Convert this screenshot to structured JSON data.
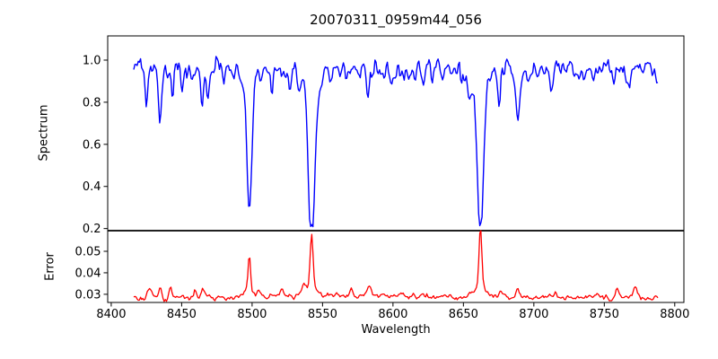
{
  "figure": {
    "title": "20070311_0959m44_056",
    "background_color": "#ffffff",
    "axis_color": "#000000"
  },
  "chart_data": {
    "type": "line",
    "title": "20070311_0959m44_056",
    "xlabel": "Wavelength",
    "grid": false,
    "legend": null,
    "xlim": [
      8397.5,
      8806.5
    ],
    "x_ticks": [
      "8400",
      "8450",
      "8500",
      "8550",
      "8600",
      "8650",
      "8700",
      "8750",
      "8800"
    ],
    "x_tick_values": [
      8400,
      8450,
      8500,
      8550,
      8600,
      8650,
      8700,
      8750,
      8800
    ],
    "x_data_range": [
      8416,
      8788
    ],
    "x_step": 0.8,
    "panels": [
      {
        "name": "spectrum",
        "ylabel": "Spectrum",
        "color": "#0000ff",
        "ylim": [
          0.19,
          1.115
        ],
        "y_ticks": [
          "1.0",
          "0.8",
          "0.6",
          "0.4",
          "0.2"
        ],
        "y_tick_values": [
          1.0,
          0.8,
          0.6,
          0.4,
          0.2
        ],
        "continuum": 0.955,
        "noise_amp": 0.07,
        "noise_fine_amp": 0.012,
        "noise_seed": 20070311,
        "absorption_lines": [
          {
            "center": 8424.8,
            "depth": 0.17,
            "sigma": 0.9
          },
          {
            "center": 8434.5,
            "depth": 0.25,
            "sigma": 1.0
          },
          {
            "center": 8443.6,
            "depth": 0.11,
            "sigma": 0.8
          },
          {
            "center": 8450.2,
            "depth": 0.09,
            "sigma": 0.8
          },
          {
            "center": 8464.6,
            "depth": 0.15,
            "sigma": 1.0
          },
          {
            "center": 8468.7,
            "depth": 0.12,
            "sigma": 0.8
          },
          {
            "center": 8480.0,
            "depth": 0.07,
            "sigma": 0.8
          },
          {
            "center": 8498.0,
            "depth": 0.565,
            "sigma": 1.7,
            "wing_depth": 0.09,
            "wing_sigma": 5.0
          },
          {
            "center": 8514.2,
            "depth": 0.11,
            "sigma": 0.9
          },
          {
            "center": 8527.0,
            "depth": 0.09,
            "sigma": 0.9
          },
          {
            "center": 8542.2,
            "depth": 0.732,
            "sigma": 2.1,
            "wing_depth": 0.11,
            "wing_sigma": 6.0
          },
          {
            "center": 8582.3,
            "depth": 0.12,
            "sigma": 1.0
          },
          {
            "center": 8598.8,
            "depth": 0.08,
            "sigma": 0.8
          },
          {
            "center": 8611.0,
            "depth": 0.08,
            "sigma": 0.8
          },
          {
            "center": 8621.7,
            "depth": 0.09,
            "sigma": 0.8
          },
          {
            "center": 8648.5,
            "depth": 0.08,
            "sigma": 0.8
          },
          {
            "center": 8653.5,
            "depth": 0.12,
            "sigma": 0.9
          },
          {
            "center": 8662.1,
            "depth": 0.715,
            "sigma": 2.0,
            "wing_depth": 0.1,
            "wing_sigma": 5.5
          },
          {
            "center": 8675.4,
            "depth": 0.16,
            "sigma": 1.0
          },
          {
            "center": 8688.6,
            "depth": 0.225,
            "sigma": 1.3
          },
          {
            "center": 8712.0,
            "depth": 0.1,
            "sigma": 0.9
          },
          {
            "center": 8736.0,
            "depth": 0.08,
            "sigma": 0.8
          },
          {
            "center": 8757.0,
            "depth": 0.1,
            "sigma": 0.9
          },
          {
            "center": 8768.0,
            "depth": 0.09,
            "sigma": 0.9
          }
        ]
      },
      {
        "name": "error",
        "ylabel": "Error",
        "color": "#ff0000",
        "ylim": [
          0.0262,
          0.0596
        ],
        "y_ticks": [
          "0.05",
          "0.04",
          "0.03"
        ],
        "y_tick_values": [
          0.05,
          0.04,
          0.03
        ],
        "baseline": 0.0282,
        "noise_amp": 0.0016,
        "noise_fine_amp": 0.0005,
        "noise_seed": 959,
        "broad_bump": {
          "center": 8585,
          "height": 0.0012,
          "sigma": 70
        },
        "error_peaks": [
          {
            "center": 8427.0,
            "height": 0.005,
            "sigma": 1.2
          },
          {
            "center": 8434.5,
            "height": 0.0042,
            "sigma": 1.0
          },
          {
            "center": 8442.0,
            "height": 0.0048,
            "sigma": 1.0
          },
          {
            "center": 8459.5,
            "height": 0.004,
            "sigma": 0.9
          },
          {
            "center": 8465.0,
            "height": 0.0038,
            "sigma": 1.2
          },
          {
            "center": 8498.0,
            "height": 0.0178,
            "sigma": 0.9
          },
          {
            "center": 8505.0,
            "height": 0.003,
            "sigma": 1.0
          },
          {
            "center": 8521.0,
            "height": 0.0028,
            "sigma": 1.0
          },
          {
            "center": 8536.5,
            "height": 0.0038,
            "sigma": 1.5
          },
          {
            "center": 8542.2,
            "height": 0.0252,
            "sigma": 1.1
          },
          {
            "center": 8570.0,
            "height": 0.0028,
            "sigma": 1.0
          },
          {
            "center": 8583.0,
            "height": 0.0046,
            "sigma": 1.2
          },
          {
            "center": 8662.1,
            "height": 0.029,
            "sigma": 1.0
          },
          {
            "center": 8676.0,
            "height": 0.0028,
            "sigma": 1.0
          },
          {
            "center": 8688.6,
            "height": 0.004,
            "sigma": 1.2
          },
          {
            "center": 8715.0,
            "height": 0.0032,
            "sigma": 1.0
          },
          {
            "center": 8745.0,
            "height": 0.0028,
            "sigma": 1.0
          },
          {
            "center": 8759.0,
            "height": 0.004,
            "sigma": 1.2
          },
          {
            "center": 8772.0,
            "height": 0.005,
            "sigma": 1.5
          }
        ]
      }
    ]
  }
}
